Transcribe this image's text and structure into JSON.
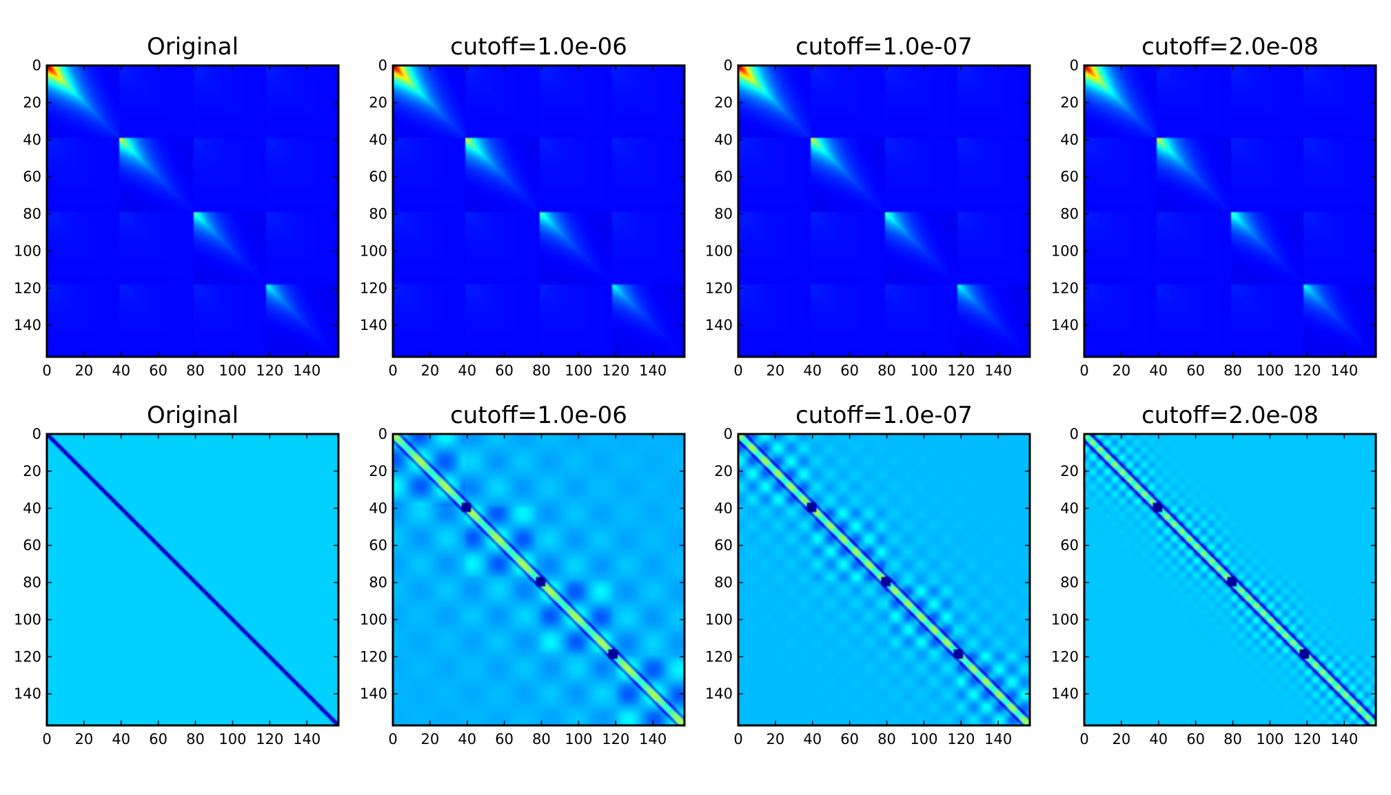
{
  "chart_data": [
    {
      "type": "heatmap",
      "title": "Original",
      "xlabel": "",
      "ylabel": "",
      "matrix_size": 157,
      "xlim": [
        0,
        157
      ],
      "ylim": [
        157,
        0
      ],
      "xticks": [
        0,
        20,
        40,
        60,
        80,
        100,
        120,
        140
      ],
      "yticks": [
        0,
        20,
        40,
        60,
        80,
        100,
        120,
        140
      ],
      "colormap": "jet",
      "block_boundaries": [
        0,
        39,
        79,
        118,
        157
      ],
      "block_peaks": [
        1.0,
        0.55,
        0.4,
        0.32
      ],
      "pattern": "block-diagonal decaying covariance"
    },
    {
      "type": "heatmap",
      "title": "cutoff=1.0e-06",
      "xlabel": "",
      "ylabel": "",
      "matrix_size": 157,
      "xlim": [
        0,
        157
      ],
      "ylim": [
        157,
        0
      ],
      "xticks": [
        0,
        20,
        40,
        60,
        80,
        100,
        120,
        140
      ],
      "yticks": [
        0,
        20,
        40,
        60,
        80,
        100,
        120,
        140
      ],
      "colormap": "jet",
      "block_boundaries": [
        0,
        39,
        79,
        118,
        157
      ],
      "block_peaks": [
        1.0,
        0.55,
        0.4,
        0.32
      ],
      "pattern": "block-diagonal decaying covariance"
    },
    {
      "type": "heatmap",
      "title": "cutoff=1.0e-07",
      "xlabel": "",
      "ylabel": "",
      "matrix_size": 157,
      "xlim": [
        0,
        157
      ],
      "ylim": [
        157,
        0
      ],
      "xticks": [
        0,
        20,
        40,
        60,
        80,
        100,
        120,
        140
      ],
      "yticks": [
        0,
        20,
        40,
        60,
        80,
        100,
        120,
        140
      ],
      "colormap": "jet",
      "block_boundaries": [
        0,
        39,
        79,
        118,
        157
      ],
      "block_peaks": [
        1.0,
        0.55,
        0.4,
        0.32
      ],
      "pattern": "block-diagonal decaying covariance"
    },
    {
      "type": "heatmap",
      "title": "cutoff=2.0e-08",
      "xlabel": "",
      "ylabel": "",
      "matrix_size": 157,
      "xlim": [
        0,
        157
      ],
      "ylim": [
        157,
        0
      ],
      "xticks": [
        0,
        20,
        40,
        60,
        80,
        100,
        120,
        140
      ],
      "yticks": [
        0,
        20,
        40,
        60,
        80,
        100,
        120,
        140
      ],
      "colormap": "jet",
      "block_boundaries": [
        0,
        39,
        79,
        118,
        157
      ],
      "block_peaks": [
        1.0,
        0.55,
        0.4,
        0.32
      ],
      "pattern": "block-diagonal decaying covariance"
    },
    {
      "type": "heatmap",
      "title": "Original",
      "xlabel": "",
      "ylabel": "",
      "matrix_size": 157,
      "xlim": [
        0,
        157
      ],
      "ylim": [
        157,
        0
      ],
      "xticks": [
        0,
        20,
        40,
        60,
        80,
        100,
        120,
        140
      ],
      "yticks": [
        0,
        20,
        40,
        60,
        80,
        100,
        120,
        140
      ],
      "colormap": "jet",
      "block_boundaries": [
        0,
        39,
        79,
        118,
        157
      ],
      "pattern": "inverse: banded tridiagonal, no ripple",
      "background_level": 0.33
    },
    {
      "type": "heatmap",
      "title": "cutoff=1.0e-06",
      "xlabel": "",
      "ylabel": "",
      "matrix_size": 157,
      "xlim": [
        0,
        157
      ],
      "ylim": [
        157,
        0
      ],
      "xticks": [
        0,
        20,
        40,
        60,
        80,
        100,
        120,
        140
      ],
      "yticks": [
        0,
        20,
        40,
        60,
        80,
        100,
        120,
        140
      ],
      "colormap": "jet",
      "block_boundaries": [
        0,
        39,
        79,
        118,
        157
      ],
      "pattern": "inverse approximation with oscillation",
      "ripple_period": 14,
      "background_level": 0.3
    },
    {
      "type": "heatmap",
      "title": "cutoff=1.0e-07",
      "xlabel": "",
      "ylabel": "",
      "matrix_size": 157,
      "xlim": [
        0,
        157
      ],
      "ylim": [
        157,
        0
      ],
      "xticks": [
        0,
        20,
        40,
        60,
        80,
        100,
        120,
        140
      ],
      "yticks": [
        0,
        20,
        40,
        60,
        80,
        100,
        120,
        140
      ],
      "colormap": "jet",
      "block_boundaries": [
        0,
        39,
        79,
        118,
        157
      ],
      "pattern": "inverse approximation with oscillation",
      "ripple_period": 7,
      "background_level": 0.31
    },
    {
      "type": "heatmap",
      "title": "cutoff=2.0e-08",
      "xlabel": "",
      "ylabel": "",
      "matrix_size": 157,
      "xlim": [
        0,
        157
      ],
      "ylim": [
        157,
        0
      ],
      "xticks": [
        0,
        20,
        40,
        60,
        80,
        100,
        120,
        140
      ],
      "yticks": [
        0,
        20,
        40,
        60,
        80,
        100,
        120,
        140
      ],
      "colormap": "jet",
      "block_boundaries": [
        0,
        39,
        79,
        118,
        157
      ],
      "pattern": "inverse approximation with oscillation",
      "ripple_period": 4,
      "background_level": 0.32
    }
  ]
}
